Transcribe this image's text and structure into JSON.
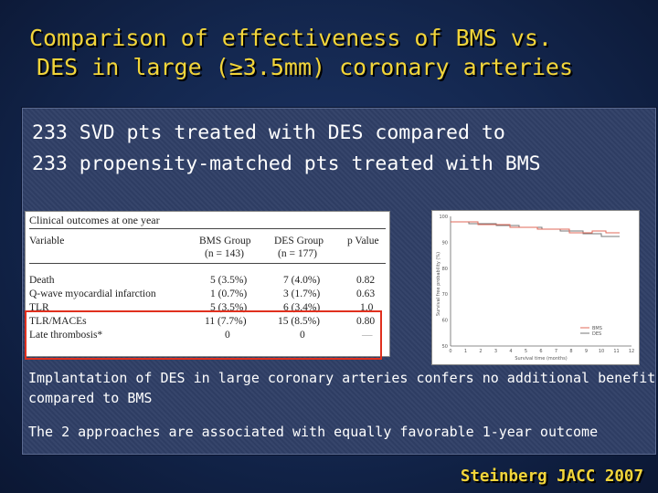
{
  "title": {
    "line1": "Comparison of effectiveness of BMS vs.",
    "line2": "DES in large (≥3.5mm) coronary arteries"
  },
  "subtitle": {
    "line1": "233 SVD pts treated with DES compared to",
    "line2": "233 propensity-matched pts treated with BMS"
  },
  "table": {
    "caption": "Clinical outcomes at one year",
    "headers": {
      "variable": "Variable",
      "bms": "BMS Group",
      "bms_n": "(n = 143)",
      "des": "DES Group",
      "des_n": "(n = 177)",
      "p": "p Value"
    },
    "rows": [
      {
        "variable": "Death",
        "bms": "5 (3.5%)",
        "des": "7 (4.0%)",
        "p": "0.82"
      },
      {
        "variable": "Q-wave myocardial infarction",
        "bms": "1 (0.7%)",
        "des": "3 (1.7%)",
        "p": "0.63"
      },
      {
        "variable": "TLR",
        "bms": "5 (3.5%)",
        "des": "6 (3.4%)",
        "p": "1.0"
      },
      {
        "variable": "TLR/MACEs",
        "bms": "11 (7.7%)",
        "des": "15 (8.5%)",
        "p": "0.80"
      },
      {
        "variable": "Late thrombosis*",
        "bms": "0",
        "des": "0",
        "p": "—"
      }
    ]
  },
  "chart": {
    "yaxis_label": "Survival free probability (%)",
    "xaxis_label": "Survival time (months)",
    "yticks": [
      "100",
      "90",
      "80",
      "70",
      "60",
      "50"
    ],
    "xticks": [
      "0",
      "1",
      "2",
      "3",
      "4",
      "5",
      "6",
      "7",
      "8",
      "9",
      "10",
      "11",
      "12"
    ],
    "legend": [
      "BMS",
      "DES"
    ],
    "colors": {
      "bms": "#e06a5a",
      "des": "#777777"
    }
  },
  "notes": {
    "note1_line1": "Implantation of DES in large coronary arteries confers no additional benefit",
    "note1_line2": "compared to BMS",
    "note2": "The 2 approaches are associated with equally favorable 1-year outcome"
  },
  "credit": "Steinberg JACC 2007"
}
